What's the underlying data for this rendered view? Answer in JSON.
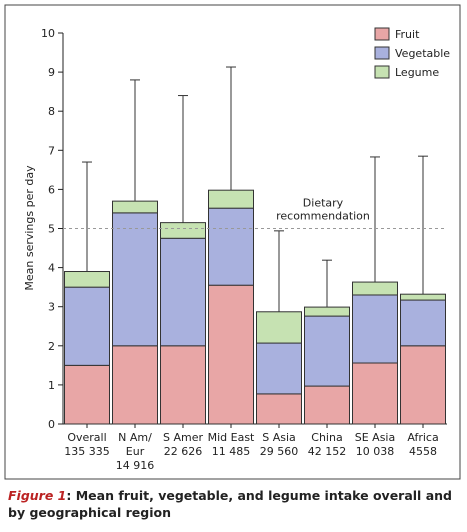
{
  "chart_data": {
    "type": "stacked_bar_error",
    "ylabel": "Mean servings per day",
    "categories": [
      [
        "Overall"
      ],
      [
        "N Am/",
        "Eur"
      ],
      [
        "S Amer"
      ],
      [
        "Mid East"
      ],
      [
        "S Asia"
      ],
      [
        "China"
      ],
      [
        "SE Asia"
      ],
      [
        "Africa"
      ]
    ],
    "sample_sizes": [
      "135 335",
      "14 916",
      "22 626",
      "11 485",
      "29 560",
      "42 152",
      "10 038",
      "4558"
    ],
    "series": [
      {
        "name": "Fruit",
        "color": "#e8a6a6",
        "values": [
          1.5,
          2.0,
          2.0,
          3.55,
          0.77,
          0.97,
          1.56,
          2.0
        ]
      },
      {
        "name": "Vegetable",
        "color": "#a9b1de",
        "values": [
          2.0,
          3.4,
          2.75,
          1.97,
          1.3,
          1.79,
          1.74,
          1.17
        ]
      },
      {
        "name": "Legume",
        "color": "#c6e2b2",
        "values": [
          0.4,
          0.3,
          0.4,
          0.46,
          0.8,
          0.23,
          0.33,
          0.15
        ]
      }
    ],
    "errors": [
      2.8,
      3.1,
      3.25,
      3.15,
      2.07,
      1.2,
      3.2,
      3.53
    ],
    "reference": {
      "value": 5,
      "label": [
        "Dietary",
        "recommendation"
      ]
    },
    "ylim": [
      0,
      10
    ],
    "yticks": [
      0,
      1,
      2,
      3,
      4,
      5,
      6,
      7,
      8,
      9,
      10
    ],
    "legend": "top-right"
  },
  "caption": {
    "figure": "Figure 1",
    "text": ": Mean fruit, vegetable, and legume intake overall and by geographical region"
  }
}
